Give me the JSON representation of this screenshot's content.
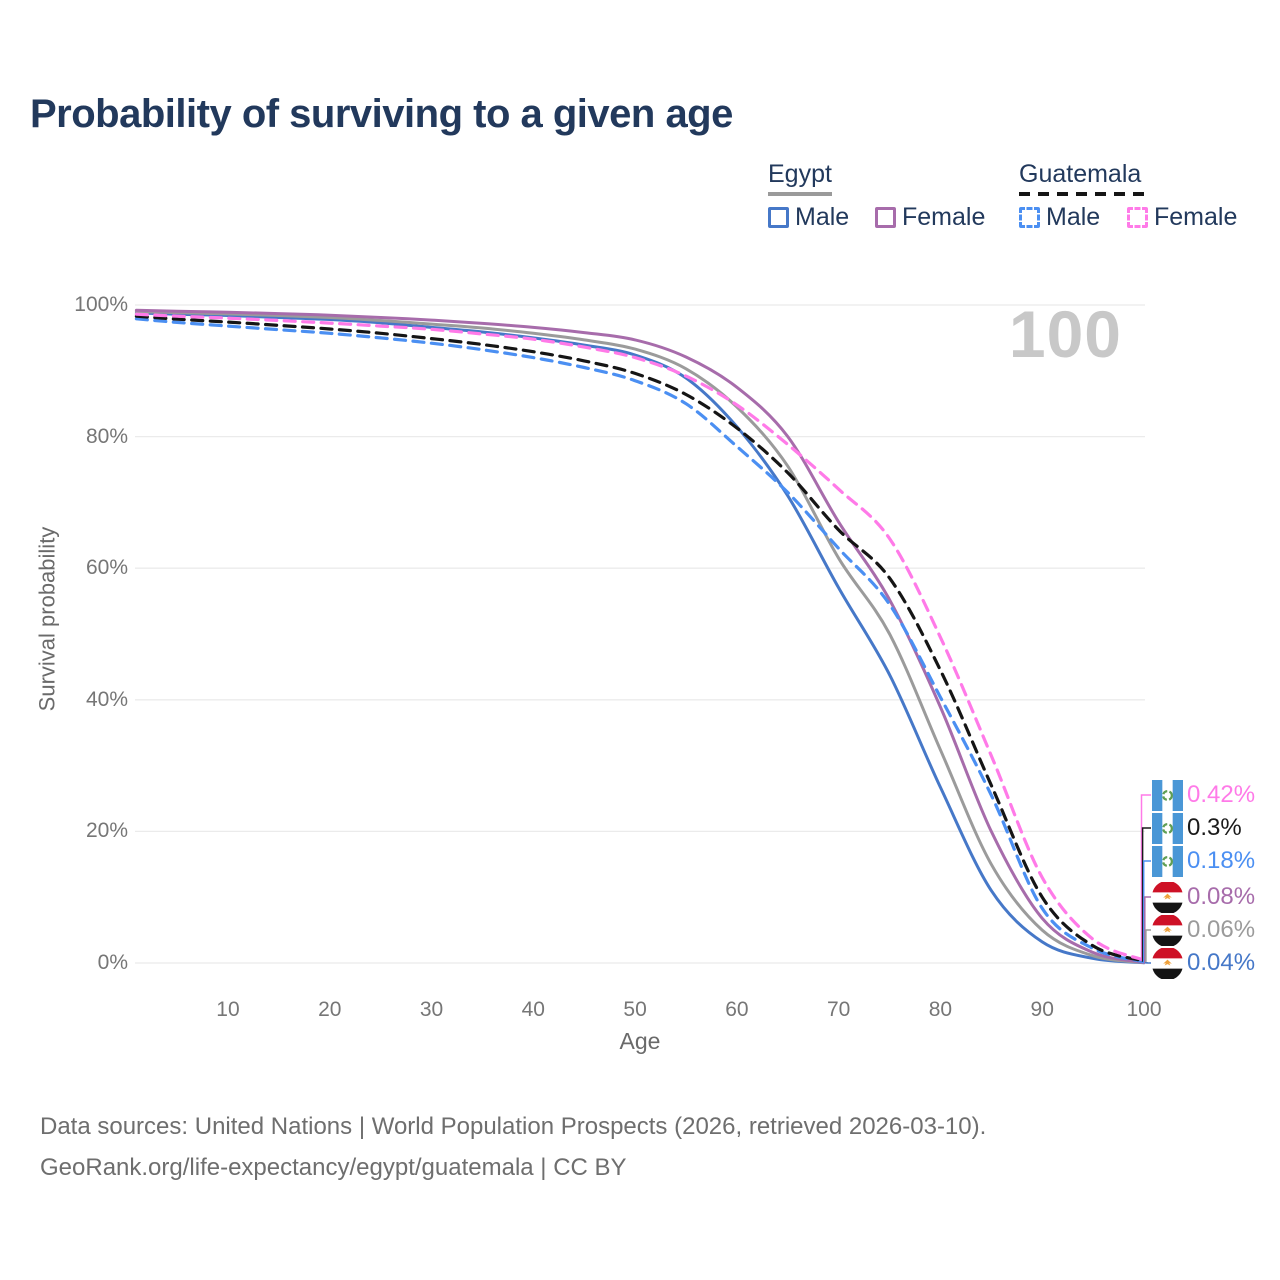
{
  "title": "Probability of surviving to a given age",
  "watermark": "100",
  "legend": {
    "groups": [
      {
        "label": "Egypt",
        "line_style": "solid",
        "underline_color": "#9a9a9a",
        "items": [
          {
            "label": "Male",
            "color": "#4678c8"
          },
          {
            "label": "Female",
            "color": "#a76cab"
          }
        ]
      },
      {
        "label": "Guatemala",
        "line_style": "dashed",
        "underline_color": "#151515",
        "items": [
          {
            "label": "Male",
            "color": "#4b8ff2"
          },
          {
            "label": "Female",
            "color": "#ff7ae8"
          }
        ]
      }
    ]
  },
  "chart_data": {
    "type": "line",
    "title": "Probability of surviving to a given age",
    "xlabel": "Age",
    "ylabel": "Survival probability",
    "xlim": [
      0,
      100
    ],
    "ylim": [
      0,
      100
    ],
    "grid": "horizontal",
    "legend_position": "top-right",
    "xticks": [
      10,
      20,
      30,
      40,
      50,
      60,
      70,
      80,
      90,
      100
    ],
    "yticks": [
      {
        "value": 0,
        "label": "0%"
      },
      {
        "value": 20,
        "label": "20%"
      },
      {
        "value": 40,
        "label": "40%"
      },
      {
        "value": 60,
        "label": "60%"
      },
      {
        "value": 80,
        "label": "80%"
      },
      {
        "value": 100,
        "label": "100%"
      }
    ],
    "x": [
      1,
      5,
      10,
      15,
      20,
      25,
      30,
      35,
      40,
      45,
      50,
      55,
      60,
      65,
      70,
      75,
      80,
      85,
      90,
      95,
      100
    ],
    "series": [
      {
        "id": "egypt-male",
        "name": "Egypt — Male",
        "color": "#4678c8",
        "dash": "solid",
        "values": [
          98.8,
          98.6,
          98.4,
          98.1,
          97.8,
          97.3,
          96.6,
          95.9,
          95.0,
          93.9,
          92.4,
          88.9,
          81.5,
          71.0,
          57.0,
          43.8,
          26.7,
          11.0,
          3.2,
          0.7,
          0.04
        ],
        "end_label": "0.04%"
      },
      {
        "id": "egypt-both",
        "name": "Egypt — Both sexes",
        "color": "#9b9b9b",
        "dash": "solid",
        "values": [
          99.0,
          98.85,
          98.65,
          98.4,
          98.1,
          97.65,
          97.1,
          96.5,
          95.7,
          94.7,
          93.3,
          90.3,
          84.5,
          75.5,
          61.5,
          50.0,
          32.4,
          15.0,
          5.0,
          1.1,
          0.06
        ],
        "end_label": "0.06%"
      },
      {
        "id": "egypt-female",
        "name": "Egypt — Female",
        "color": "#a76cab",
        "dash": "solid",
        "values": [
          99.2,
          99.05,
          98.9,
          98.7,
          98.45,
          98.1,
          97.7,
          97.2,
          96.6,
          95.8,
          94.7,
          92.1,
          87.5,
          80.0,
          67.0,
          55.2,
          38.9,
          20.0,
          6.8,
          1.6,
          0.08
        ],
        "end_label": "0.08%"
      },
      {
        "id": "guatemala-male",
        "name": "Guatemala — Male",
        "color": "#4b8ff2",
        "dash": "dashed",
        "values": [
          97.9,
          97.35,
          96.8,
          96.25,
          95.7,
          95.0,
          94.2,
          93.2,
          92.0,
          90.5,
          88.5,
          85.0,
          78.5,
          71.5,
          63.0,
          54.5,
          40.4,
          25.5,
          8.3,
          2.2,
          0.18
        ],
        "end_label": "0.18%"
      },
      {
        "id": "guatemala-both",
        "name": "Guatemala — Both sexes",
        "color": "#151515",
        "dash": "dashed",
        "values": [
          98.3,
          97.85,
          97.4,
          96.9,
          96.35,
          95.7,
          94.9,
          94.0,
          92.9,
          91.5,
          89.6,
          86.4,
          81.3,
          74.5,
          65.8,
          58.5,
          44.5,
          27.0,
          10.0,
          2.6,
          0.3
        ],
        "end_label": "0.3%"
      },
      {
        "id": "guatemala-female",
        "name": "Guatemala — Female",
        "color": "#ff7ae8",
        "dash": "dashed",
        "values": [
          98.6,
          98.3,
          98.0,
          97.65,
          97.25,
          96.8,
          96.3,
          95.6,
          94.8,
          93.6,
          92.0,
          89.2,
          84.8,
          78.8,
          72.0,
          64.5,
          49.5,
          31.5,
          13.0,
          3.6,
          0.42
        ],
        "end_label": "0.42%"
      }
    ]
  },
  "end_labels": [
    {
      "text": "0.42%",
      "color": "#ff7ae8",
      "flag": "guatemala",
      "series": "guatemala-female"
    },
    {
      "text": "0.3%",
      "color": "#1a1a1a",
      "flag": "guatemala",
      "series": "guatemala-both"
    },
    {
      "text": "0.18%",
      "color": "#4b8ff2",
      "flag": "guatemala",
      "series": "guatemala-male"
    },
    {
      "text": "0.08%",
      "color": "#a76cab",
      "flag": "egypt",
      "series": "egypt-female"
    },
    {
      "text": "0.06%",
      "color": "#9b9b9b",
      "flag": "egypt",
      "series": "egypt-both"
    },
    {
      "text": "0.04%",
      "color": "#4678c8",
      "flag": "egypt",
      "series": "egypt-male"
    }
  ],
  "flag_colors": {
    "guatemala": {
      "band": "#4a97d6",
      "center": "#ffffff",
      "emblem": "#5f9e53"
    },
    "egypt": {
      "top": "#ce1126",
      "middle": "#ffffff",
      "bottom": "#141414",
      "eagle": "#efa23c"
    }
  },
  "footer": {
    "line1": "Data sources: United Nations | World Population Prospects (2026, retrieved 2026-03-10).",
    "line2": "GeoRank.org/life-expectancy/egypt/guatemala | CC BY"
  }
}
